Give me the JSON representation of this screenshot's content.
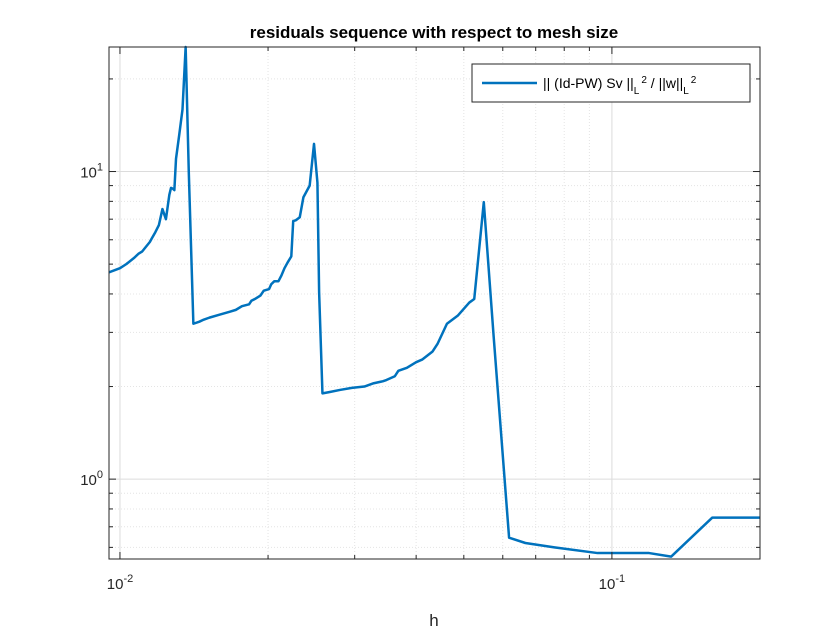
{
  "chart_data": {
    "type": "line",
    "title": "residuals sequence with respect to mesh size",
    "xlabel": "h",
    "ylabel": "",
    "xscale": "log",
    "yscale": "log",
    "xlim": [
      0.0095,
      0.2
    ],
    "ylim": [
      0.55,
      25.4
    ],
    "grid": true,
    "minor_grid": true,
    "legend_position": "top-right",
    "series_color": "#0072BD",
    "x_ticks": [
      {
        "value": 0.01,
        "base": "10",
        "exp": "-2"
      },
      {
        "value": 0.1,
        "base": "10",
        "exp": "-1"
      }
    ],
    "y_ticks": [
      {
        "value": 1,
        "base": "10",
        "exp": "0"
      },
      {
        "value": 10,
        "base": "10",
        "exp": "1"
      }
    ],
    "legend": {
      "prefix": "|| (Id-PW) Sv ||",
      "sub1": "L",
      "sup1": "2",
      "middle": " / ||w||",
      "sub2": "L",
      "sup2": "2"
    },
    "series": [
      {
        "x": [
          0.0095,
          0.01,
          0.0103,
          0.0107,
          0.0109,
          0.0111,
          0.0113,
          0.0115,
          0.0116,
          0.0118,
          0.012,
          0.0122,
          0.0124,
          0.0126,
          0.0127,
          0.0128,
          0.0129,
          0.013,
          0.0132,
          0.0133,
          0.0134,
          0.0136,
          0.0138,
          0.0141,
          0.0145,
          0.0148,
          0.0152,
          0.0159,
          0.0167,
          0.0172,
          0.0177,
          0.0183,
          0.0185,
          0.0188,
          0.0193,
          0.0196,
          0.0201,
          0.0203,
          0.0206,
          0.021,
          0.0213,
          0.0216,
          0.0219,
          0.0223,
          0.0225,
          0.0228,
          0.0232,
          0.0236,
          0.0243,
          0.0248,
          0.0252,
          0.0254,
          0.0258,
          0.0267,
          0.028,
          0.0296,
          0.0314,
          0.0328,
          0.0342,
          0.0348,
          0.0362,
          0.0368,
          0.0383,
          0.04,
          0.0412,
          0.0432,
          0.0442,
          0.0462,
          0.0486,
          0.0513,
          0.0525,
          0.0549,
          0.0575,
          0.0618,
          0.0667,
          0.0764,
          0.0935,
          0.119,
          0.132,
          0.16,
          0.2
        ],
        "y": [
          4.7,
          4.85,
          5.0,
          5.25,
          5.4,
          5.5,
          5.7,
          5.9,
          6.05,
          6.35,
          6.7,
          7.55,
          7.0,
          8.4,
          8.85,
          8.8,
          8.7,
          11.0,
          13.2,
          14.5,
          15.9,
          25.4,
          10.0,
          3.2,
          3.25,
          3.3,
          3.35,
          3.42,
          3.5,
          3.55,
          3.65,
          3.7,
          3.8,
          3.85,
          3.95,
          4.1,
          4.15,
          4.3,
          4.4,
          4.4,
          4.6,
          4.85,
          5.05,
          5.3,
          6.9,
          6.95,
          7.1,
          8.25,
          9.0,
          12.3,
          9.2,
          4.05,
          1.9,
          1.92,
          1.95,
          1.98,
          2.0,
          2.05,
          2.08,
          2.1,
          2.16,
          2.25,
          2.3,
          2.4,
          2.45,
          2.6,
          2.75,
          3.2,
          3.4,
          3.75,
          3.85,
          7.95,
          2.9,
          0.645,
          0.62,
          0.6,
          0.575,
          0.575,
          0.56,
          0.75,
          0.75
        ]
      }
    ]
  }
}
